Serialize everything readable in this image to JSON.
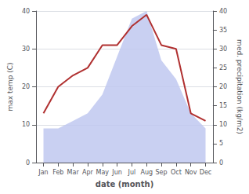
{
  "chart_data": {
    "type": "line",
    "categories": [
      "Jan",
      "Feb",
      "Mar",
      "Apr",
      "May",
      "Jun",
      "Jul",
      "Aug",
      "Sep",
      "Oct",
      "Nov",
      "Dec"
    ],
    "xlabel": "date (month)",
    "ylabel": "max temp (C)",
    "y2label": "med. precipitation (kg/m2)",
    "series": [
      {
        "type": "area",
        "axis": "y2",
        "color": "#c0c8f0",
        "values": [
          9,
          9,
          11,
          13,
          18,
          28,
          38,
          40,
          27,
          22,
          13,
          9
        ]
      },
      {
        "type": "line",
        "color": "#b03030",
        "values": [
          13,
          20,
          23,
          25,
          31,
          31,
          36,
          39,
          31,
          30,
          13,
          11
        ]
      }
    ],
    "ylim": [
      0,
      40
    ],
    "yticks": [
      0,
      10,
      20,
      30,
      40
    ],
    "y2lim": [
      0,
      40
    ],
    "y2ticks": [
      0,
      5,
      10,
      15,
      20,
      25,
      30,
      35,
      40
    ],
    "grid": true
  }
}
